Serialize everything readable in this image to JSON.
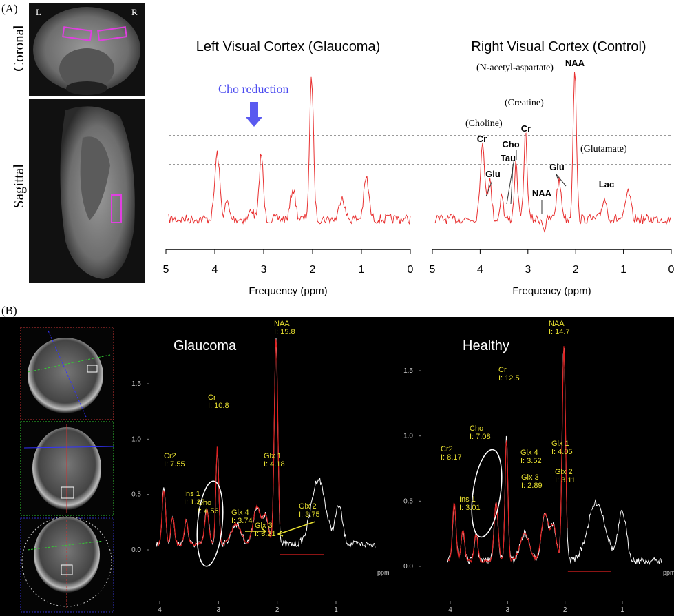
{
  "panel_a": {
    "label": "(A)",
    "coronal": "Coronal",
    "sagittal": "Sagittal",
    "left": "L",
    "right": "R",
    "spectra": [
      {
        "title": "Left Visual Cortex (Glaucoma)",
        "x_label": "Frequency (ppm)",
        "xticks": [
          5,
          4,
          3,
          2,
          1,
          0
        ],
        "annotations": [
          "Cho reduction"
        ]
      },
      {
        "title": "Right Visual Cortex (Control)",
        "x_label": "Frequency (ppm)",
        "xticks": [
          5,
          4,
          3,
          2,
          1,
          0
        ],
        "annotations": [
          "(N-acetyl-aspartate)",
          "NAA",
          "(Creatine)",
          "(Choline)",
          "Cr",
          "Cr",
          "Cho",
          "Tau",
          "Glu",
          "Glu",
          "(Glutamate)",
          "NAA",
          "Lac"
        ]
      }
    ]
  },
  "panel_b": {
    "label": "(B)",
    "spectra": [
      {
        "title": "Glaucoma",
        "x_unit": "ppm",
        "xticks": [
          4,
          3,
          2,
          1
        ],
        "yticks": [
          {
            "value": 0,
            "label": "0.0"
          },
          0.5,
          {
            "value": 1,
            "label": "1.0"
          },
          1.5
        ],
        "peaks": [
          {
            "name": "Cr2",
            "intensity": "I: 7.55"
          },
          {
            "name": "Ins 1",
            "intensity": "I: 1.32"
          },
          {
            "name": "Cho",
            "intensity": "I: 4.56"
          },
          {
            "name": "Glx 4",
            "intensity": "I: 3.74"
          },
          {
            "name": "Glx 3",
            "intensity": "I: 3.21"
          },
          {
            "name": "Cr",
            "intensity": "I: 10.8"
          },
          {
            "name": "Glx 1",
            "intensity": "I: 4.18"
          },
          {
            "name": "Glx 2",
            "intensity": "I: 3.75"
          },
          {
            "name": "NAA",
            "intensity": "I: 15.8"
          }
        ]
      },
      {
        "title": "Healthy",
        "x_unit": "ppm",
        "xticks": [
          4,
          3,
          2,
          1
        ],
        "yticks": [
          {
            "value": 0,
            "label": "0.0"
          },
          0.5,
          {
            "value": 1,
            "label": "1.0"
          },
          1.5
        ],
        "peaks": [
          {
            "name": "Cr2",
            "intensity": "I: 8.17"
          },
          {
            "name": "Ins 1",
            "intensity": "I: 3.01"
          },
          {
            "name": "Cho",
            "intensity": "I: 7.08"
          },
          {
            "name": "Cr",
            "intensity": "I: 12.5"
          },
          {
            "name": "Glx 4",
            "intensity": "I: 3.52"
          },
          {
            "name": "Glx 3",
            "intensity": "I: 2.89"
          },
          {
            "name": "Glx 1",
            "intensity": "I: 4.05"
          },
          {
            "name": "Glx 2",
            "intensity": "I: 3.11"
          },
          {
            "name": "NAA",
            "intensity": "I: 14.7"
          }
        ]
      }
    ]
  }
}
